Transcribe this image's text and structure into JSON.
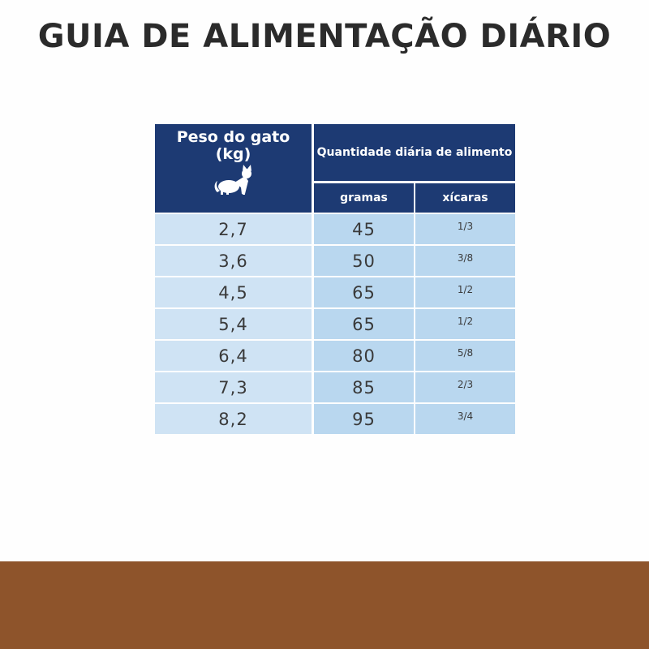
{
  "title": "GUIA DE ALIMENTAÇÃO DIÁRIO",
  "table": {
    "header_peso_line1": "Peso do gato",
    "header_peso_line2": "(kg)",
    "header_quantidade": "Quantidade diária de alimento",
    "header_gramas": "gramas",
    "header_xicaras": "xícaras",
    "icon": "cat-icon",
    "rows": [
      {
        "peso": "2,7",
        "gramas": "45",
        "xicaras": "1/3"
      },
      {
        "peso": "3,6",
        "gramas": "50",
        "xicaras": "3/8"
      },
      {
        "peso": "4,5",
        "gramas": "65",
        "xicaras": "1/2"
      },
      {
        "peso": "5,4",
        "gramas": "65",
        "xicaras": "1/2"
      },
      {
        "peso": "6,4",
        "gramas": "80",
        "xicaras": "5/8"
      },
      {
        "peso": "7,3",
        "gramas": "85",
        "xicaras": "2/3"
      },
      {
        "peso": "8,2",
        "gramas": "95",
        "xicaras": "3/4"
      }
    ]
  },
  "colors": {
    "header_bg": "#1d3a73",
    "peso_cell_bg": "#cfe3f4",
    "value_cell_bg": "#b9d7ef",
    "footer_band": "#8e542b",
    "title_text": "#2b2b2b"
  }
}
